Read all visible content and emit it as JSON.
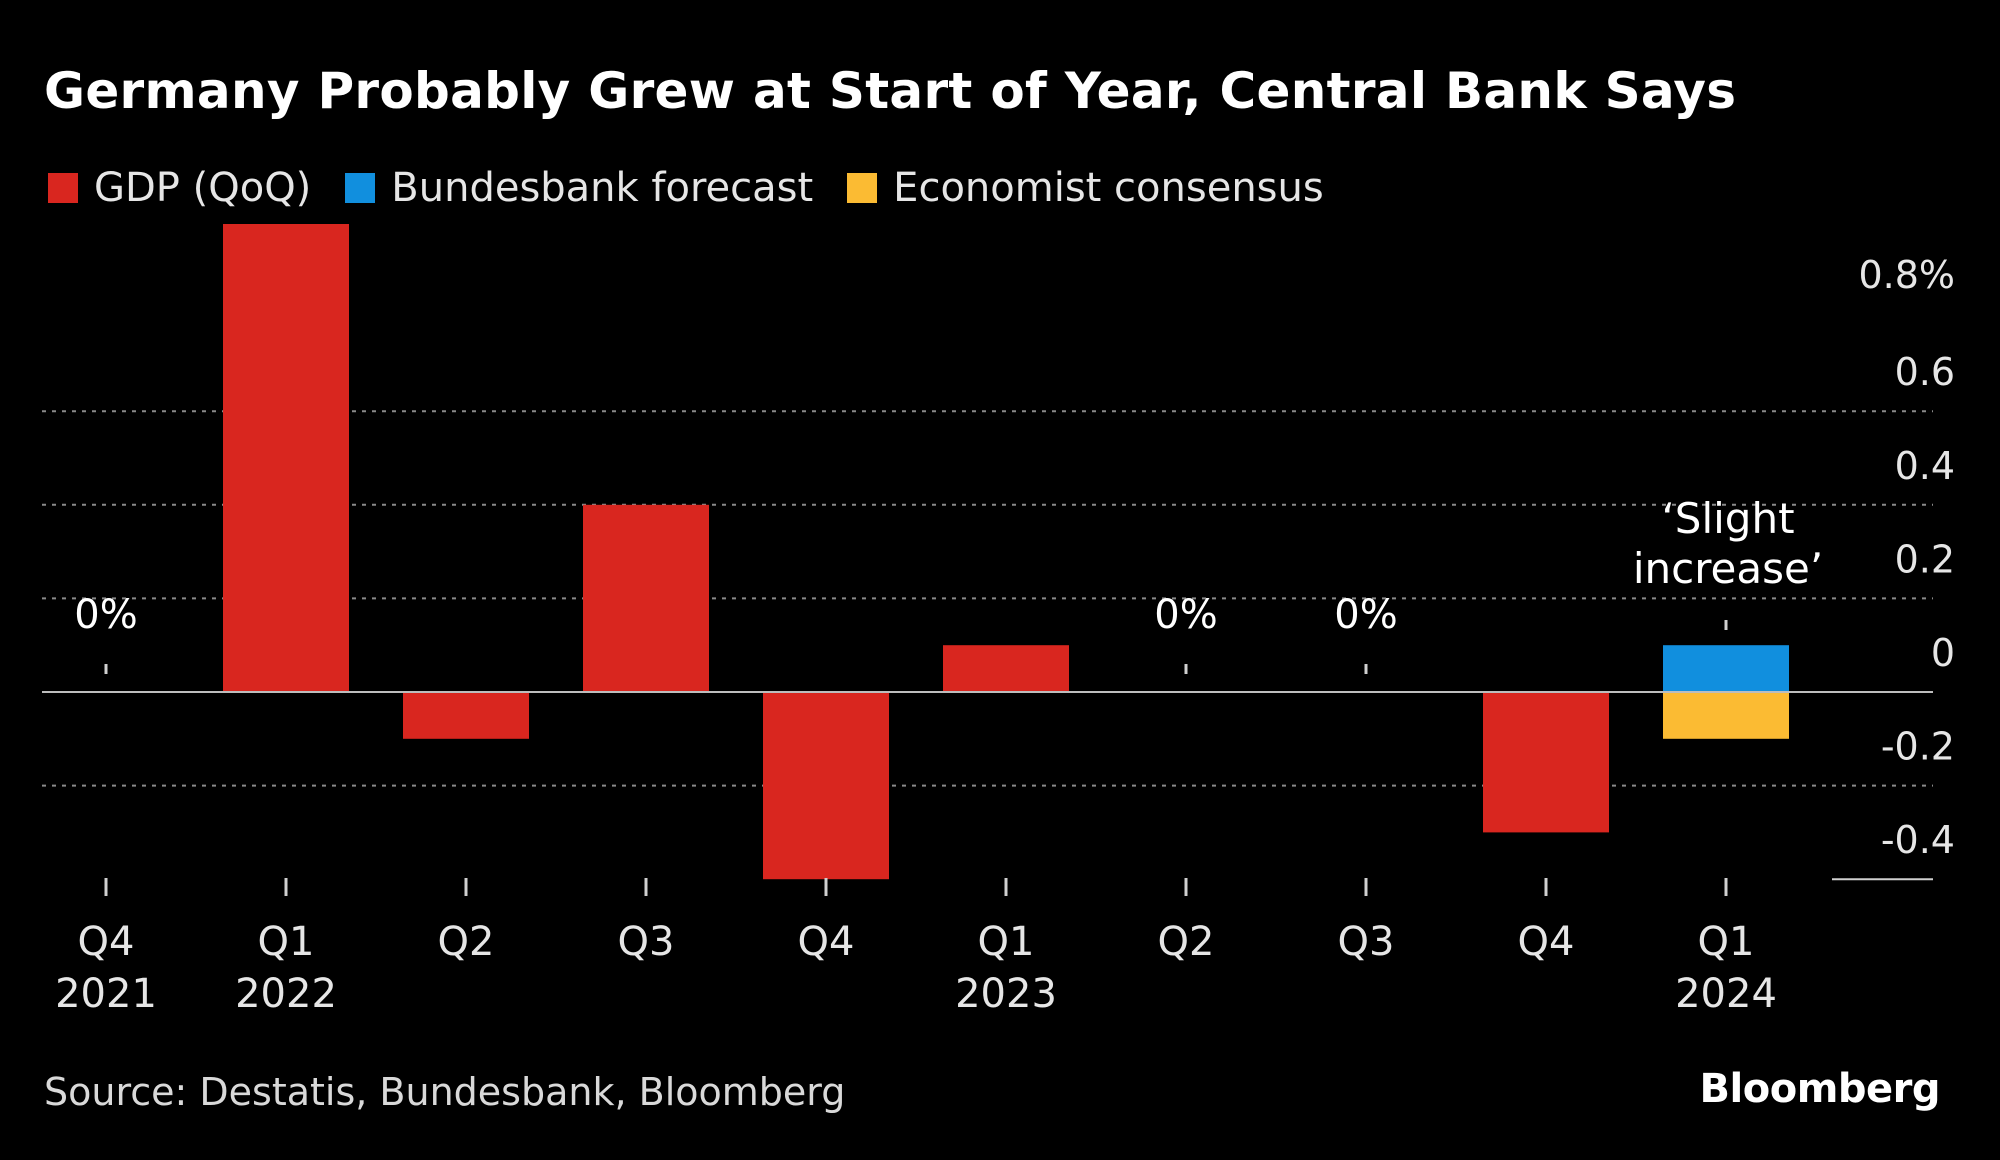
{
  "title": "Germany Probably Grew at Start of Year, Central Bank Says",
  "source": "Source: Destatis, Bundesbank, Bloomberg",
  "brand": "Bloomberg",
  "colors": {
    "gdp": "#d9261f",
    "forecast": "#118fde",
    "consensus": "#fbbb33",
    "grid": "#8a8a8a",
    "text": "#e6e6e6"
  },
  "legend": [
    {
      "label": "GDP (QoQ)",
      "color": "#d9261f"
    },
    {
      "label": "Bundesbank forecast",
      "color": "#118fde"
    },
    {
      "label": "Economist consensus",
      "color": "#fbbb33"
    }
  ],
  "chart_data": {
    "type": "bar",
    "categories": [
      "Q4 2021",
      "Q1 2022",
      "Q2 2022",
      "Q3 2022",
      "Q4 2022",
      "Q1 2023",
      "Q2 2023",
      "Q3 2023",
      "Q4 2023",
      "Q1 2024"
    ],
    "category_labels": [
      [
        "Q4",
        "2021"
      ],
      [
        "Q1",
        "2022"
      ],
      [
        "Q2",
        ""
      ],
      [
        "Q3",
        ""
      ],
      [
        "Q4",
        ""
      ],
      [
        "Q1",
        "2023"
      ],
      [
        "Q2",
        ""
      ],
      [
        "Q3",
        ""
      ],
      [
        "Q4",
        ""
      ],
      [
        "Q1",
        "2024"
      ]
    ],
    "series": [
      {
        "name": "GDP (QoQ)",
        "values": [
          0,
          1.0,
          -0.1,
          0.4,
          -0.4,
          0.1,
          0,
          0,
          -0.3,
          null
        ]
      },
      {
        "name": "Bundesbank forecast",
        "values": [
          null,
          null,
          null,
          null,
          null,
          null,
          null,
          null,
          null,
          0.1
        ]
      },
      {
        "name": "Economist consensus",
        "values": [
          null,
          null,
          null,
          null,
          null,
          null,
          null,
          null,
          null,
          -0.1
        ]
      }
    ],
    "zero_labels": [
      {
        "category": "Q4 2021",
        "text": "0%"
      },
      {
        "category": "Q2 2023",
        "text": "0%"
      },
      {
        "category": "Q3 2023",
        "text": "0%"
      }
    ],
    "annotation": {
      "category": "Q1 2024",
      "lines": [
        "‘Slight",
        "increase’"
      ]
    },
    "y_ticks": [
      {
        "value": 0.8,
        "label": "0.8%"
      },
      {
        "value": 0.6,
        "label": "0.6"
      },
      {
        "value": 0.4,
        "label": "0.4"
      },
      {
        "value": 0.2,
        "label": "0.2"
      },
      {
        "value": 0,
        "label": "0"
      },
      {
        "value": -0.2,
        "label": "-0.2"
      },
      {
        "value": -0.4,
        "label": "-0.4"
      }
    ],
    "ylim": [
      -0.4,
      1.0
    ],
    "grid": true,
    "legend_position": "top-left"
  }
}
